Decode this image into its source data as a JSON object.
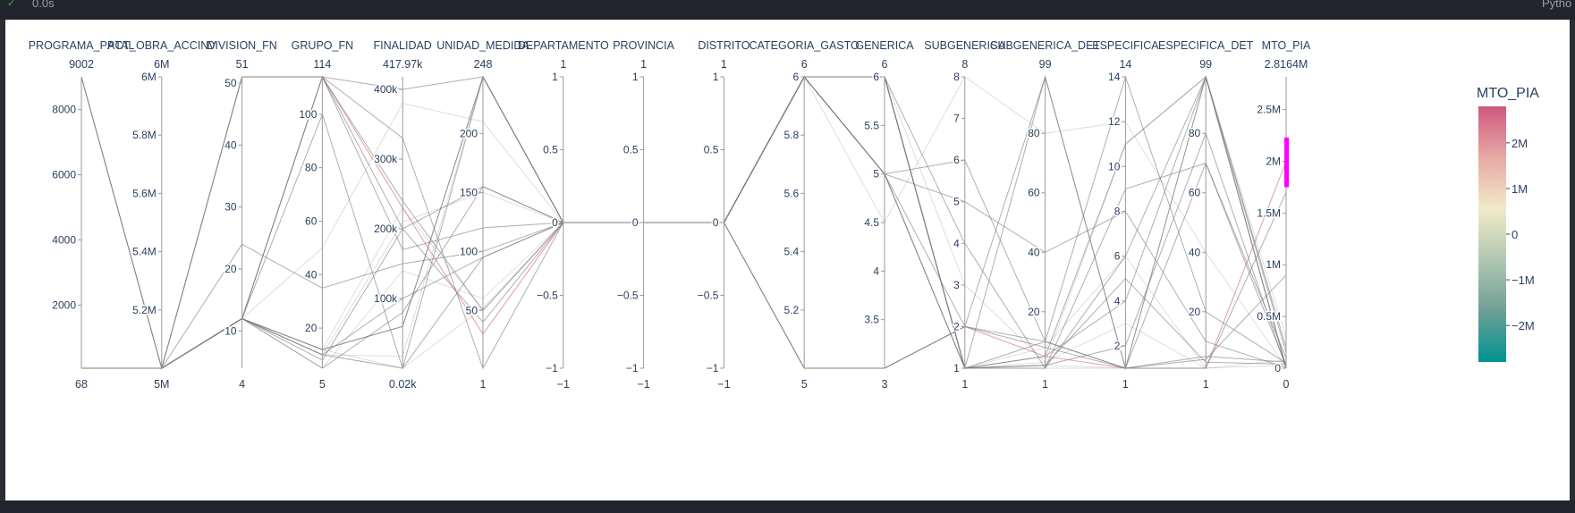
{
  "window": {
    "status_text": "0.0s",
    "right_text": "Pytho",
    "check_icon": "check-icon"
  },
  "chart_data": {
    "type": "parallel-coordinates",
    "colorbar": {
      "title": "MTO_PIA",
      "range": [
        -2800000,
        2800000
      ],
      "ticks": [
        {
          "value": 2000000,
          "label": "2M"
        },
        {
          "value": 1000000,
          "label": "1M"
        },
        {
          "value": 0,
          "label": "0"
        },
        {
          "value": -1000000,
          "label": "−1M"
        },
        {
          "value": -2000000,
          "label": "−2M"
        }
      ],
      "colors": [
        "#d0587e",
        "#e7a9a4",
        "#f1eac8",
        "#b1c7b3",
        "#6e9f96",
        "#009392"
      ]
    },
    "constraint_color": "#ff00ff",
    "dimensions": [
      {
        "name": "PROGRAMA_PPTAL",
        "max_label": "9002",
        "min_label": "68",
        "range": [
          68,
          9002
        ],
        "ticks": [
          {
            "v": 2000,
            "l": "2000"
          },
          {
            "v": 4000,
            "l": "4000"
          },
          {
            "v": 6000,
            "l": "6000"
          },
          {
            "v": 8000,
            "l": "8000"
          }
        ]
      },
      {
        "name": "ACT_OBRA_ACCINV",
        "max_label": "6M",
        "min_label": "5M",
        "range": [
          5000000,
          6000000
        ],
        "ticks": [
          {
            "v": 5200000,
            "l": "5.2M"
          },
          {
            "v": 5400000,
            "l": "5.4M"
          },
          {
            "v": 5600000,
            "l": "5.6M"
          },
          {
            "v": 5800000,
            "l": "5.8M"
          },
          {
            "v": 6000000,
            "l": "6M"
          }
        ]
      },
      {
        "name": "DIVISION_FN",
        "max_label": "51",
        "min_label": "4",
        "range": [
          4,
          51
        ],
        "ticks": [
          {
            "v": 10,
            "l": "10"
          },
          {
            "v": 20,
            "l": "20"
          },
          {
            "v": 30,
            "l": "30"
          },
          {
            "v": 40,
            "l": "40"
          },
          {
            "v": 50,
            "l": "50"
          }
        ]
      },
      {
        "name": "GRUPO_FN",
        "max_label": "114",
        "min_label": "5",
        "range": [
          5,
          114
        ],
        "ticks": [
          {
            "v": 20,
            "l": "20"
          },
          {
            "v": 40,
            "l": "40"
          },
          {
            "v": 60,
            "l": "60"
          },
          {
            "v": 80,
            "l": "80"
          },
          {
            "v": 100,
            "l": "100"
          }
        ]
      },
      {
        "name": "FINALIDAD",
        "max_label": "417.97k",
        "min_label": "0.02k",
        "range": [
          20,
          417970
        ],
        "ticks": [
          {
            "v": 100000,
            "l": "100k"
          },
          {
            "v": 200000,
            "l": "200k"
          },
          {
            "v": 300000,
            "l": "300k"
          },
          {
            "v": 400000,
            "l": "400k"
          }
        ]
      },
      {
        "name": "UNIDAD_MEDIDA",
        "max_label": "248",
        "min_label": "1",
        "range": [
          1,
          248
        ],
        "ticks": [
          {
            "v": 50,
            "l": "50"
          },
          {
            "v": 100,
            "l": "100"
          },
          {
            "v": 150,
            "l": "150"
          },
          {
            "v": 200,
            "l": "200"
          }
        ]
      },
      {
        "name": "DEPARTAMENTO",
        "max_label": "1",
        "min_label": "−1",
        "range": [
          -1,
          1
        ],
        "ticks": [
          {
            "v": -1,
            "l": "−1"
          },
          {
            "v": -0.5,
            "l": "−0.5"
          },
          {
            "v": 0,
            "l": "0"
          },
          {
            "v": 0.5,
            "l": "0.5"
          },
          {
            "v": 1,
            "l": "1"
          }
        ]
      },
      {
        "name": "PROVINCIA",
        "max_label": "1",
        "min_label": "−1",
        "range": [
          -1,
          1
        ],
        "ticks": [
          {
            "v": -1,
            "l": "−1"
          },
          {
            "v": -0.5,
            "l": "−0.5"
          },
          {
            "v": 0,
            "l": "0"
          },
          {
            "v": 0.5,
            "l": "0.5"
          },
          {
            "v": 1,
            "l": "1"
          }
        ]
      },
      {
        "name": "DISTRITO",
        "max_label": "1",
        "min_label": "−1",
        "range": [
          -1,
          1
        ],
        "ticks": [
          {
            "v": -1,
            "l": "−1"
          },
          {
            "v": -0.5,
            "l": "−0.5"
          },
          {
            "v": 0,
            "l": "0"
          },
          {
            "v": 0.5,
            "l": "0.5"
          },
          {
            "v": 1,
            "l": "1"
          }
        ]
      },
      {
        "name": "CATEGORIA_GASTO",
        "max_label": "6",
        "min_label": "5",
        "range": [
          5,
          6
        ],
        "ticks": [
          {
            "v": 5.2,
            "l": "5.2"
          },
          {
            "v": 5.4,
            "l": "5.4"
          },
          {
            "v": 5.6,
            "l": "5.6"
          },
          {
            "v": 5.8,
            "l": "5.8"
          },
          {
            "v": 6,
            "l": "6"
          }
        ]
      },
      {
        "name": "GENERICA",
        "max_label": "6",
        "min_label": "3",
        "range": [
          3,
          6
        ],
        "ticks": [
          {
            "v": 3.5,
            "l": "3.5"
          },
          {
            "v": 4,
            "l": "4"
          },
          {
            "v": 4.5,
            "l": "4.5"
          },
          {
            "v": 5,
            "l": "5"
          },
          {
            "v": 5.5,
            "l": "5.5"
          },
          {
            "v": 6,
            "l": "6"
          }
        ]
      },
      {
        "name": "SUBGENERICA",
        "max_label": "8",
        "min_label": "1",
        "range": [
          1,
          8
        ],
        "ticks": [
          {
            "v": 1,
            "l": "1"
          },
          {
            "v": 2,
            "l": "2"
          },
          {
            "v": 3,
            "l": "3"
          },
          {
            "v": 4,
            "l": "4"
          },
          {
            "v": 5,
            "l": "5"
          },
          {
            "v": 6,
            "l": "6"
          },
          {
            "v": 7,
            "l": "7"
          },
          {
            "v": 8,
            "l": "8"
          }
        ]
      },
      {
        "name": "SUBGENERICA_DET",
        "max_label": "99",
        "min_label": "1",
        "range": [
          1,
          99
        ],
        "ticks": [
          {
            "v": 20,
            "l": "20"
          },
          {
            "v": 40,
            "l": "40"
          },
          {
            "v": 60,
            "l": "60"
          },
          {
            "v": 80,
            "l": "80"
          }
        ]
      },
      {
        "name": "ESPECIFICA",
        "max_label": "14",
        "min_label": "1",
        "range": [
          1,
          14
        ],
        "ticks": [
          {
            "v": 2,
            "l": "2"
          },
          {
            "v": 4,
            "l": "4"
          },
          {
            "v": 6,
            "l": "6"
          },
          {
            "v": 8,
            "l": "8"
          },
          {
            "v": 10,
            "l": "10"
          },
          {
            "v": 12,
            "l": "12"
          },
          {
            "v": 14,
            "l": "14"
          }
        ]
      },
      {
        "name": "ESPECIFICA_DET",
        "max_label": "99",
        "min_label": "1",
        "range": [
          1,
          99
        ],
        "ticks": [
          {
            "v": 20,
            "l": "20"
          },
          {
            "v": 40,
            "l": "40"
          },
          {
            "v": 60,
            "l": "60"
          },
          {
            "v": 80,
            "l": "80"
          }
        ]
      },
      {
        "name": "MTO_PIA",
        "max_label": "2.8164M",
        "min_label": "0",
        "range": [
          0,
          2816400
        ],
        "ticks": [
          {
            "v": 0,
            "l": "0"
          },
          {
            "v": 500000,
            "l": "0.5M"
          },
          {
            "v": 1000000,
            "l": "1M"
          },
          {
            "v": 1500000,
            "l": "1.5M"
          },
          {
            "v": 2000000,
            "l": "2M"
          },
          {
            "v": 2500000,
            "l": "2.5M"
          }
        ],
        "constraint_range": [
          1750000,
          2230000
        ]
      }
    ],
    "records": [
      {
        "v": [
          9002,
          5000000,
          51,
          114,
          230000,
          30,
          0,
          0,
          0,
          5,
          3,
          2,
          5,
          1,
          1,
          2000000
        ],
        "c": 2000000
      },
      {
        "v": [
          9002,
          5000000,
          51,
          114,
          240000,
          50,
          0,
          0,
          0,
          5,
          3,
          2,
          8,
          1,
          1,
          1700000
        ],
        "c": 1700000
      },
      {
        "v": [
          9002,
          5000000,
          51,
          114,
          200000,
          40,
          0,
          0,
          0,
          5,
          3,
          2,
          10,
          1,
          4,
          900000
        ],
        "c": 900000
      },
      {
        "v": [
          68,
          5000000,
          12,
          10,
          17200,
          248,
          0,
          0,
          0,
          6,
          6,
          3,
          3,
          11,
          99,
          300000
        ],
        "c": 300000
      },
      {
        "v": [
          68,
          5000000,
          12,
          10,
          100000,
          95,
          0,
          0,
          0,
          6,
          6,
          1,
          5,
          11,
          99,
          200000
        ],
        "c": 200000
      },
      {
        "v": [
          68,
          5000000,
          12,
          8,
          200000,
          155,
          0,
          0,
          0,
          6,
          6,
          1,
          5,
          4,
          99,
          150000
        ],
        "c": 150000
      },
      {
        "v": [
          68,
          5000000,
          12,
          12,
          20,
          52,
          0,
          0,
          0,
          6,
          5,
          1,
          8,
          6,
          1,
          80000
        ],
        "c": 80000
      },
      {
        "v": [
          68,
          5000000,
          12,
          12,
          60000,
          248,
          0,
          0,
          0,
          6,
          5,
          2,
          99,
          1,
          5,
          60000
        ],
        "c": 60000
      },
      {
        "v": [
          68,
          5000000,
          12,
          5,
          80000,
          155,
          0,
          0,
          0,
          6,
          5,
          1,
          2,
          5,
          3,
          40000
        ],
        "c": 40000
      },
      {
        "v": [
          68,
          5000000,
          12,
          5,
          140000,
          60,
          0,
          0,
          0,
          6,
          5,
          1,
          3,
          3,
          1,
          30000
        ],
        "c": 30000
      },
      {
        "v": [
          68,
          5000000,
          12,
          100,
          20,
          95,
          0,
          0,
          0,
          6,
          5,
          1,
          10,
          1,
          70,
          20000
        ],
        "c": 20000
      },
      {
        "v": [
          68,
          5000000,
          12,
          114,
          400000,
          248,
          0,
          0,
          0,
          6,
          6,
          1,
          99,
          1,
          99,
          15000
        ],
        "c": 15000
      },
      {
        "v": [
          68,
          5000000,
          12,
          10,
          210000,
          150,
          0,
          0,
          0,
          6,
          6,
          1,
          1,
          1,
          99,
          5000
        ],
        "c": 5000
      },
      {
        "v": [
          68,
          5000000,
          12,
          12,
          60000,
          248,
          0,
          0,
          0,
          6,
          6,
          1,
          2,
          2,
          80,
          2000
        ],
        "c": 2000
      },
      {
        "v": [
          68,
          5000000,
          12,
          10,
          20,
          248,
          0,
          0,
          0,
          6,
          6,
          1,
          1,
          6,
          99,
          1000
        ],
        "c": 1000
      },
      {
        "v": [
          68,
          5000000,
          12,
          12,
          230000,
          50,
          0,
          0,
          0,
          6,
          6,
          1,
          2,
          1,
          99,
          500
        ],
        "c": 500
      },
      {
        "v": [
          68,
          5000000,
          24,
          35,
          150000,
          100,
          0,
          0,
          0,
          6,
          6,
          4,
          1,
          9,
          70,
          100000
        ],
        "c": 100000
      },
      {
        "v": [
          68,
          5000000,
          12,
          114,
          330000,
          1,
          0,
          0,
          0,
          6,
          5,
          6,
          10,
          14,
          20,
          50000
        ],
        "c": 50000
      },
      {
        "v": [
          68,
          5000000,
          12,
          50,
          380000,
          210,
          0,
          0,
          0,
          6,
          4.5,
          8,
          80,
          12,
          40,
          10000
        ],
        "c": 10000
      },
      {
        "v": [
          68,
          5000000,
          12,
          114,
          170000,
          120,
          0,
          0,
          0,
          6,
          5,
          5,
          40,
          8,
          10,
          5000
        ],
        "c": 5000
      }
    ]
  }
}
